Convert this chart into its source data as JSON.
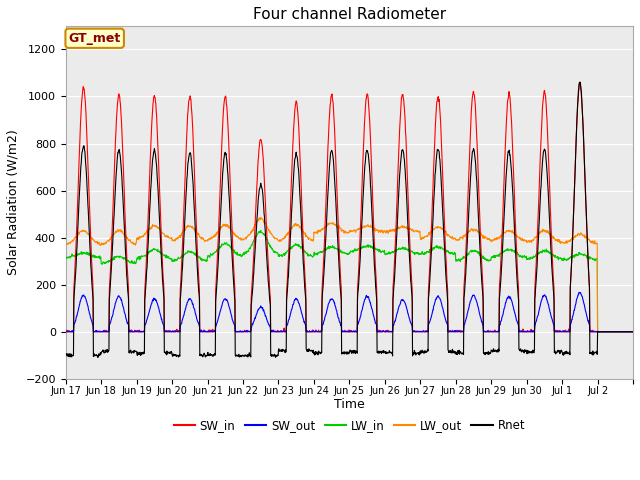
{
  "title": "Four channel Radiometer",
  "xlabel": "Time",
  "ylabel": "Solar Radiation (W/m2)",
  "ylim": [
    -200,
    1300
  ],
  "yticks": [
    -200,
    0,
    200,
    400,
    600,
    800,
    1000,
    1200
  ],
  "bg_color": "#ffffff",
  "plot_bg_color": "#ebebeb",
  "annotation_text": "GT_met",
  "annotation_bg": "#ffffcc",
  "annotation_border": "#cc8800",
  "legend_entries": [
    "SW_in",
    "SW_out",
    "LW_in",
    "LW_out",
    "Rnet"
  ],
  "legend_colors": [
    "#ff0000",
    "#0000ff",
    "#00cc00",
    "#ff8800",
    "#000000"
  ],
  "sw_in_peak": [
    1040,
    1010,
    1000,
    1000,
    1000,
    820,
    975,
    1005,
    1010,
    1010,
    1000,
    1020,
    1010,
    1020,
    1055
  ],
  "sw_out_peak": [
    155,
    150,
    140,
    140,
    140,
    105,
    140,
    140,
    150,
    135,
    150,
    155,
    150,
    155,
    165
  ],
  "lw_in_base": [
    315,
    290,
    310,
    300,
    320,
    330,
    320,
    330,
    340,
    330,
    330,
    300,
    315,
    310,
    305
  ],
  "lw_in_peak": [
    335,
    320,
    350,
    340,
    375,
    425,
    370,
    360,
    365,
    355,
    360,
    345,
    350,
    345,
    330
  ],
  "lw_out_base": [
    370,
    370,
    395,
    385,
    390,
    390,
    385,
    420,
    425,
    425,
    395,
    390,
    385,
    380,
    375
  ],
  "lw_out_peak": [
    430,
    430,
    450,
    450,
    455,
    480,
    455,
    460,
    450,
    445,
    445,
    435,
    430,
    430,
    415
  ],
  "rnet_peak": [
    790,
    770,
    770,
    760,
    760,
    625,
    755,
    770,
    775,
    775,
    775,
    775,
    770,
    775,
    1060
  ],
  "rnet_night": [
    -100,
    -85,
    -90,
    -100,
    -100,
    -100,
    -80,
    -90,
    -85,
    -90,
    -85,
    -90,
    -80,
    -85,
    -90
  ],
  "num_days": 15,
  "tick_positions": [
    0,
    1,
    2,
    3,
    4,
    5,
    6,
    7,
    8,
    9,
    10,
    11,
    12,
    13,
    14,
    15,
    16
  ],
  "tick_labels": [
    "Jun 17",
    "Jun 18",
    "Jun 19",
    "Jun 20",
    "Jun 21",
    "Jun 22",
    "Jun 23",
    "Jun 24",
    "Jun 25",
    "Jun 26",
    "Jun 27",
    "Jun 28",
    "Jun 29",
    "Jun 30",
    "Jul 1",
    "Jul 2",
    ""
  ]
}
